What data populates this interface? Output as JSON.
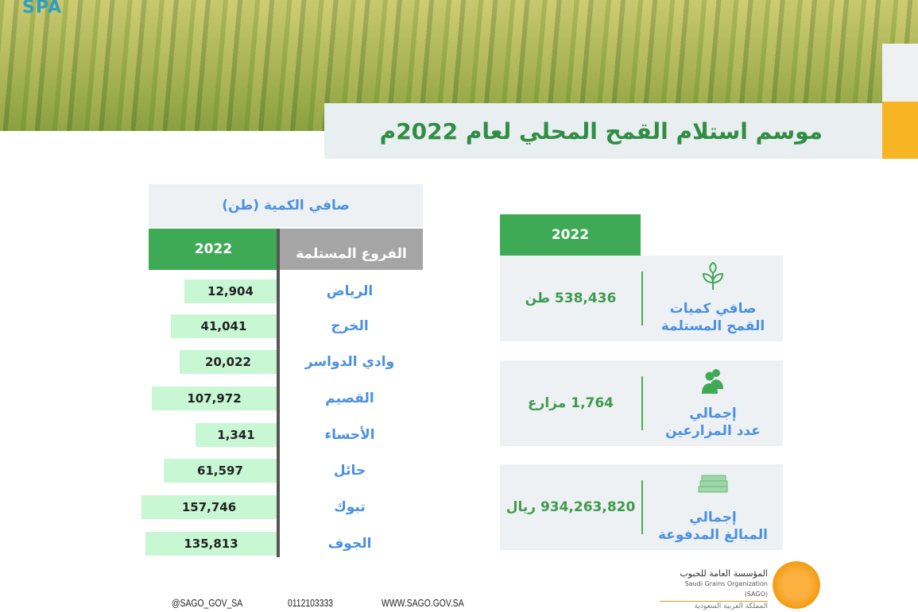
{
  "header": {
    "logo_text": "SPA",
    "title": "موسم استلام القمح المحلي لعام 2022م"
  },
  "table": {
    "heading": "صافي الكمية (طن)",
    "year_label": "2022",
    "branch_header": "الفروع المستلمة"
  },
  "chart_data": {
    "type": "bar",
    "orientation": "horizontal",
    "title": "صافي الكمية (طن)",
    "categories": [
      "الرياض",
      "الخرج",
      "وادي الدواسر",
      "القصيم",
      "الأحساء",
      "حائل",
      "تبوك",
      "الجوف"
    ],
    "values": [
      12904,
      41041,
      20022,
      107972,
      1341,
      61597,
      157746,
      135813
    ],
    "value_labels": [
      "12,904",
      "41,041",
      "20,022",
      "107,972",
      "1,341",
      "61,597",
      "157,746",
      "135,813"
    ],
    "series": [
      {
        "name": "2022"
      }
    ],
    "bar_color": "#c8f7d4"
  },
  "summary": {
    "year_label": "2022",
    "cards": [
      {
        "icon": "plant-icon",
        "label_1": "صافي كميات",
        "label_2": "القمح المستلمة",
        "value": "538,436 طن"
      },
      {
        "icon": "users-icon",
        "label_1": "إجمالي",
        "label_2": "عدد المزارعين",
        "value": "1,764 مزارع"
      },
      {
        "icon": "money-icon",
        "label_1": "إجمالي",
        "label_2": "المبالغ المدفوعة",
        "value": "934,263,820 ريال"
      }
    ]
  },
  "footer": {
    "twitter": "@SAGO_GOV_SA",
    "phone": "0112103333",
    "website": "WWW.SAGO.GOV.SA",
    "org_ar": "المؤسسة العامة للحبوب",
    "org_en": "Saudi Grains Organization (SAGO)",
    "country_ar": "المملكة العربية السعودية"
  },
  "colors": {
    "green": "#3faa55",
    "blue": "#4a90e2",
    "yellow": "#f7b523"
  }
}
